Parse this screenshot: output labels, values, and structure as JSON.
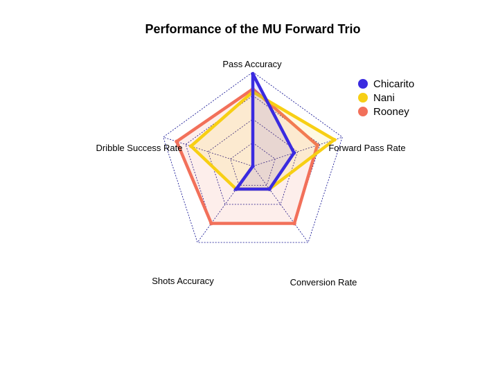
{
  "chart_data": {
    "type": "radar",
    "title": "Performance of the MU Forward Trio",
    "axes": [
      "Pass Accuracy",
      "Forward Pass Rate",
      "Conversion Rate",
      "Shots Accuracy",
      "Dribble Success Rate"
    ],
    "range": [
      0,
      1
    ],
    "grid_levels": 4,
    "grid": true,
    "legend_position": "top-right",
    "series": [
      {
        "name": "Rooney",
        "color": "#F2705A",
        "fill": "rgba(242,112,90,0.12)",
        "values": [
          0.82,
          0.72,
          0.75,
          0.75,
          0.85
        ]
      },
      {
        "name": "Nani",
        "color": "#F7CF14",
        "fill": "rgba(247,207,20,0.12)",
        "values": [
          0.79,
          0.91,
          0.3,
          0.3,
          0.69
        ]
      },
      {
        "name": "Chicarito",
        "color": "#3A2BE0",
        "fill": "rgba(58,43,224,0.10)",
        "values": [
          0.98,
          0.46,
          0.3,
          0.3,
          0.0
        ]
      }
    ],
    "legend_order": [
      "Chicarito",
      "Nani",
      "Rooney"
    ]
  }
}
